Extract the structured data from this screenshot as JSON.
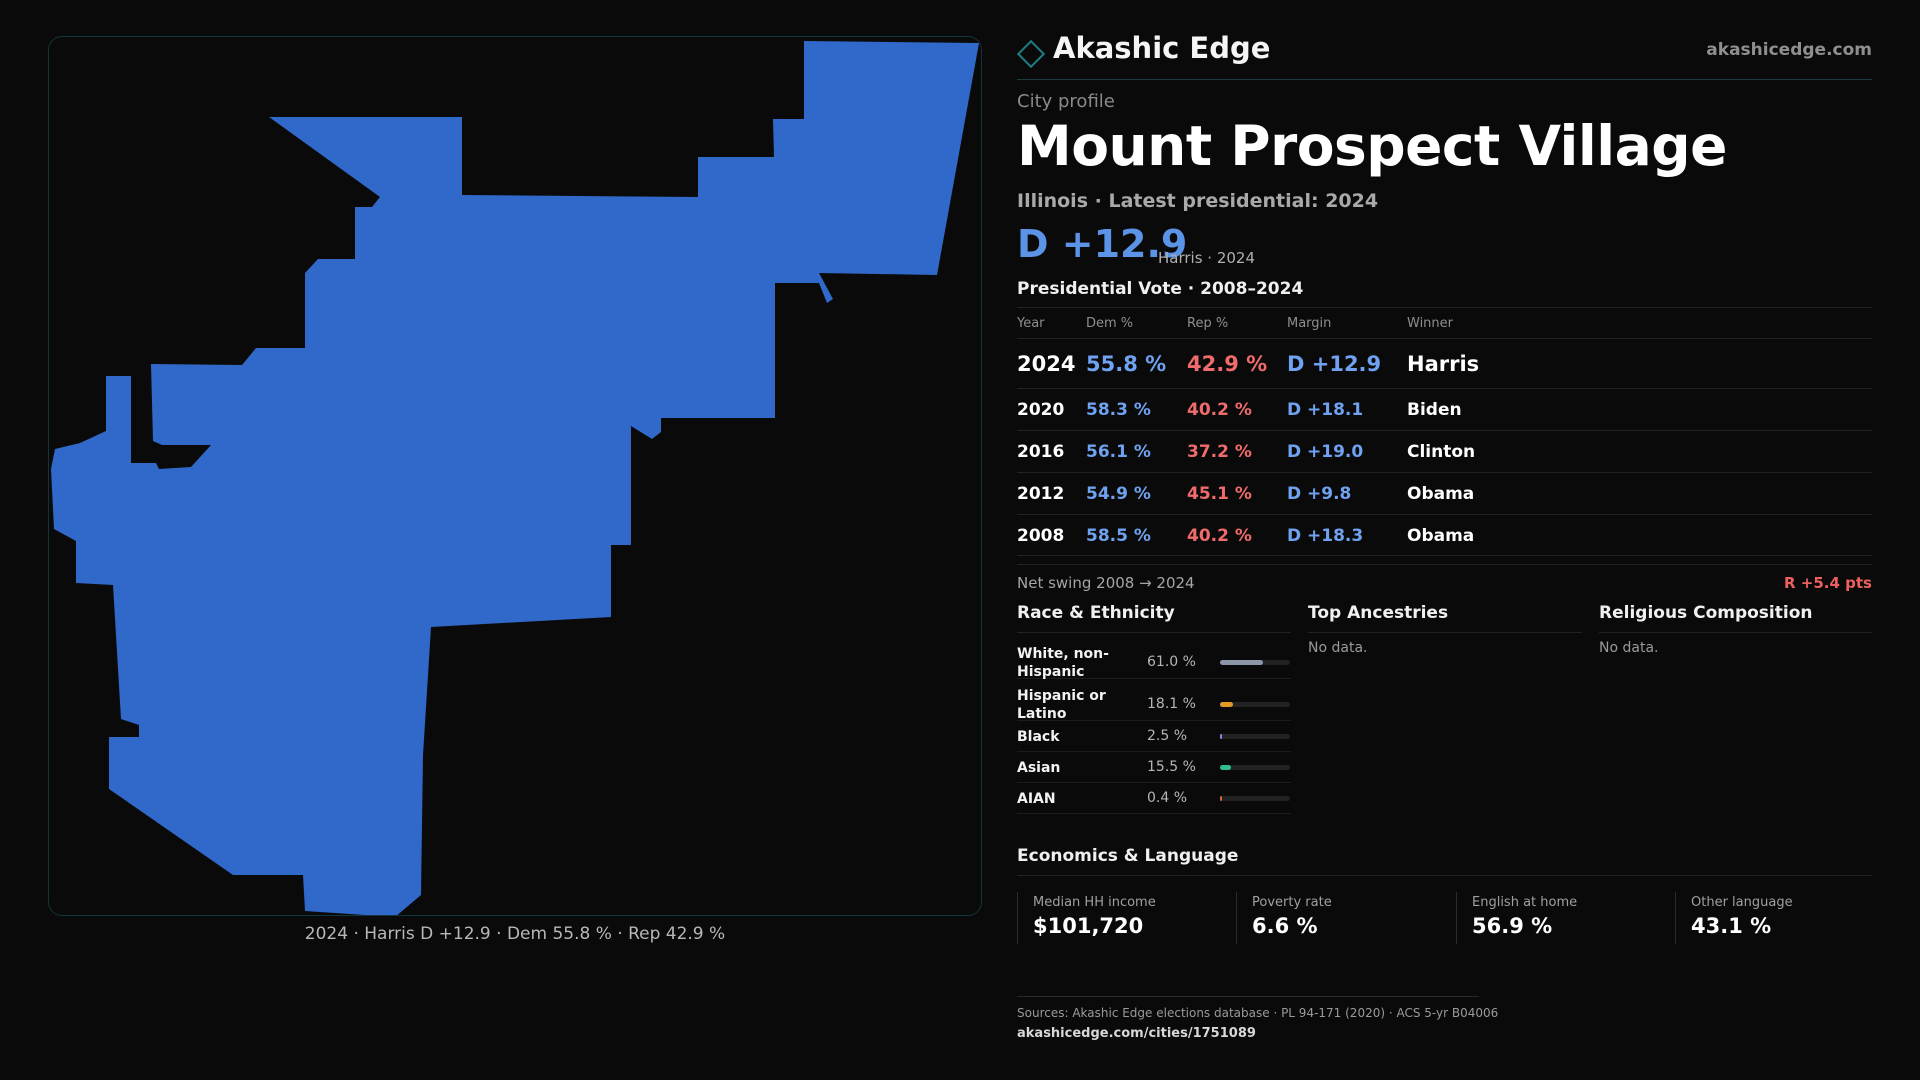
{
  "brand": {
    "name": "Akashic Edge",
    "url": "akashicedge.com"
  },
  "header": {
    "eyebrow": "City profile",
    "city": "Mount Prospect Village",
    "subhead": "Illinois · Latest presidential: 2024",
    "margin": "D +12.9",
    "margin_note": "Harris · 2024"
  },
  "map": {
    "caption": "2024 · Harris D +12.9 · Dem 55.8 % · Rep 42.9 %",
    "fill_color": "#3069c9",
    "border_color": "#12353a"
  },
  "vote_table": {
    "title": "Presidential Vote · 2008–2024",
    "headers": [
      "Year",
      "Dem %",
      "Rep %",
      "Margin",
      "Winner"
    ],
    "rows": [
      {
        "year": "2024",
        "dem": "55.8 %",
        "rep": "42.9 %",
        "margin": "D +12.9",
        "winner": "Harris"
      },
      {
        "year": "2020",
        "dem": "58.3 %",
        "rep": "40.2 %",
        "margin": "D +18.1",
        "winner": "Biden"
      },
      {
        "year": "2016",
        "dem": "56.1 %",
        "rep": "37.2 %",
        "margin": "D +19.0",
        "winner": "Clinton"
      },
      {
        "year": "2012",
        "dem": "54.9 %",
        "rep": "45.1 %",
        "margin": "D +9.8",
        "winner": "Obama"
      },
      {
        "year": "2008",
        "dem": "58.5 %",
        "rep": "40.2 %",
        "margin": "D +18.3",
        "winner": "Obama"
      }
    ]
  },
  "swing": {
    "label": "Net swing 2008 → 2024",
    "value": "R +5.4 pts"
  },
  "race": {
    "title": "Race & Ethnicity",
    "items": [
      {
        "label": "White, non-Hispanic",
        "pct": "61.0 %",
        "share": 0.61,
        "color": "#8d96a8"
      },
      {
        "label": "Hispanic or Latino",
        "pct": "18.1 %",
        "share": 0.181,
        "color": "#e09a2a"
      },
      {
        "label": "Black",
        "pct": "2.5 %",
        "share": 0.025,
        "color": "#9d7ae0"
      },
      {
        "label": "Asian",
        "pct": "15.5 %",
        "share": 0.155,
        "color": "#2fbf8f"
      },
      {
        "label": "AIAN",
        "pct": "0.4 %",
        "share": 0.004,
        "color": "#d0643a"
      }
    ]
  },
  "ancestries": {
    "title": "Top Ancestries",
    "empty": "No data."
  },
  "religion": {
    "title": "Religious Composition",
    "empty": "No data."
  },
  "economics": {
    "title": "Economics & Language",
    "cards": [
      {
        "label": "Median HH income",
        "value": "$101,720"
      },
      {
        "label": "Poverty rate",
        "value": "6.6 %"
      },
      {
        "label": "English at home",
        "value": "56.9 %"
      },
      {
        "label": "Other language",
        "value": "43.1 %"
      }
    ]
  },
  "sources": {
    "text": "Sources: Akashic Edge elections database · PL 94-171 (2020) · ACS 5-yr B04006",
    "url": "akashicedge.com/cities/1751089"
  }
}
